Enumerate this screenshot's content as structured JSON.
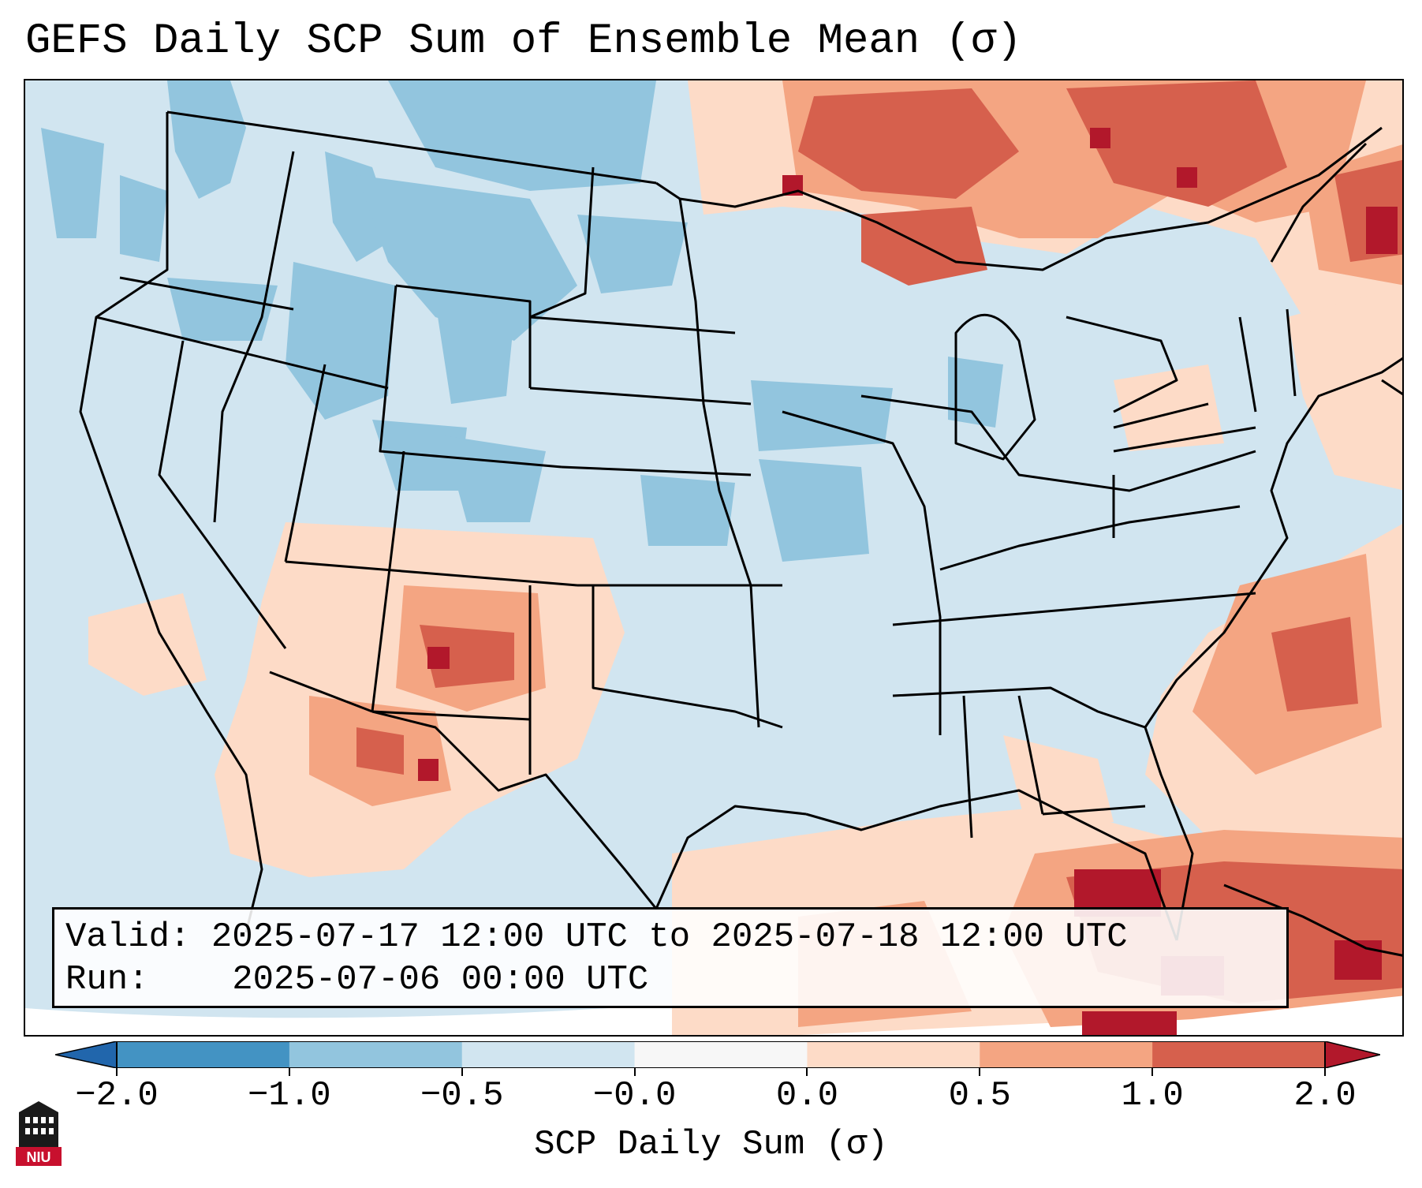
{
  "title": "GEFS Daily SCP Sum of Ensemble Mean (σ)",
  "info": {
    "valid_label": "Valid:",
    "valid_value": "2025-07-17 12:00 UTC to 2025-07-18 12:00 UTC",
    "run_label": "Run:",
    "run_value": "2025-07-06 00:00 UTC"
  },
  "colorbar": {
    "label": "SCP Daily Sum (σ)",
    "ticks": [
      "−2.0",
      "−1.0",
      "−0.5",
      "−0.0",
      "0.0",
      "0.5",
      "1.0",
      "2.0"
    ],
    "boundaries": [
      -2.0,
      -1.0,
      -0.5,
      -0.0,
      0.0,
      0.5,
      1.0,
      2.0
    ],
    "colors": [
      "#4393c3",
      "#92c5de",
      "#d1e5f0",
      "#f7f7f7",
      "#fddbc7",
      "#f4a582",
      "#d6604d"
    ],
    "extend_low_color": "#2166ac",
    "extend_high_color": "#b2182b"
  },
  "map": {
    "type": "gridded anomaly map",
    "region": "Contiguous United States",
    "background_color": "#d1e5f0",
    "border_color": "#000000"
  },
  "logo": {
    "text": "NIU",
    "color": "#c8102e"
  }
}
